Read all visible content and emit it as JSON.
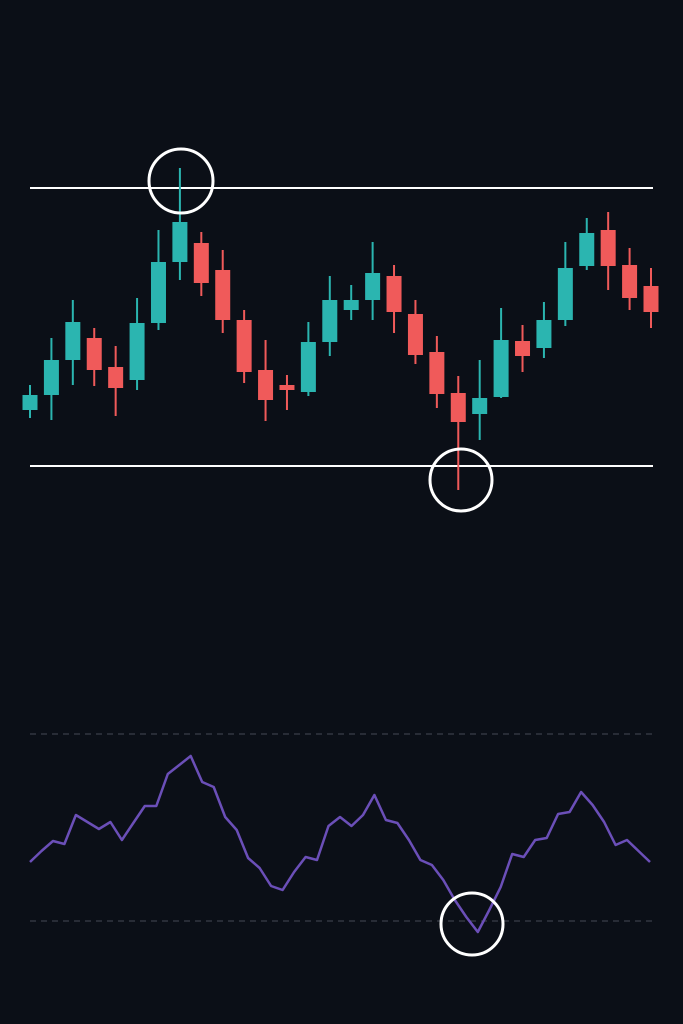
{
  "chart_data": [
    {
      "type": "candlestick",
      "up_color": "#2bb5b0",
      "down_color": "#f05a5a",
      "level_color": "#ffffff",
      "ylim": [
        0,
        350
      ],
      "open": [
        90,
        105,
        140,
        162,
        133,
        120,
        177,
        238,
        257,
        230,
        180,
        130,
        115,
        108,
        158,
        190,
        200,
        224,
        186,
        148,
        107,
        86,
        103,
        159,
        152,
        180,
        234,
        270,
        235,
        214
      ],
      "high": [
        115,
        162,
        200,
        172,
        154,
        202,
        270,
        332,
        268,
        250,
        190,
        160,
        125,
        178,
        224,
        215,
        258,
        235,
        200,
        164,
        124,
        140,
        192,
        175,
        198,
        258,
        282,
        288,
        252,
        232
      ],
      "low": [
        82,
        80,
        115,
        114,
        84,
        110,
        170,
        220,
        204,
        167,
        117,
        79,
        90,
        104,
        144,
        180,
        180,
        167,
        136,
        92,
        10,
        60,
        102,
        128,
        142,
        174,
        230,
        210,
        190,
        172
      ],
      "close": [
        105,
        140,
        178,
        130,
        112,
        177,
        238,
        278,
        217,
        180,
        128,
        100,
        110,
        158,
        200,
        200,
        227,
        188,
        145,
        106,
        78,
        102,
        160,
        144,
        180,
        232,
        267,
        234,
        202,
        188
      ],
      "levels": [
        312,
        34
      ]
    },
    {
      "type": "line",
      "color": "#6b4fb8",
      "level_color": "#3a3f4a",
      "ylim": [
        0,
        260
      ],
      "values": [
        98,
        109,
        119,
        116,
        145,
        138,
        131,
        138,
        120,
        137,
        154,
        154,
        186,
        195,
        204,
        178,
        173,
        143,
        130,
        102,
        92,
        74,
        70,
        88,
        103,
        100,
        134,
        143,
        134,
        145,
        165,
        140,
        137,
        120,
        100,
        95,
        80,
        60,
        43,
        28,
        50,
        73,
        106,
        103,
        120,
        122,
        146,
        148,
        168,
        155,
        138,
        115,
        120,
        109,
        98
      ],
      "levels": [
        226,
        39
      ]
    }
  ]
}
